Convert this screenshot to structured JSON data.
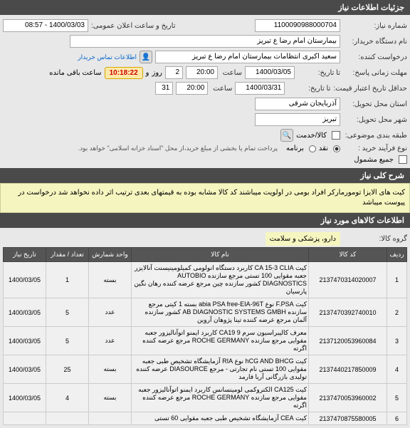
{
  "colors": {
    "header_bg": "#4a4a4a",
    "header_fg": "#ffffff",
    "content_bg": "#e8e8e8",
    "field_bg": "#ffffff",
    "field_border": "#aaaaaa",
    "banner_bg": "#f5f5c0",
    "countdown_bg": "#ffe9a8",
    "countdown_fg": "#cc0000",
    "table_th_bg": "#555555",
    "table_td_bg": "#f0f0f0"
  },
  "sections": {
    "header": "جزئیات اطلاعات نیاز",
    "general": "شرح کلی نیاز",
    "items": "اطلاعات کالاهای مورد نیاز"
  },
  "labels": {
    "need_no": "شماره نیاز:",
    "pub_date": "تاریخ و ساعت اعلان عمومی:",
    "buyer": "نام دستگاه خریدار:",
    "requester": "درخواست کننده:",
    "buyer_info": "اطلاعات تماس خریدار",
    "deadline": "مهلت زمانی پاسخ:",
    "until_date": "تا تاریخ:",
    "time": "ساعت",
    "days": "و",
    "remain": "روز",
    "time_remain": "ساعت باقی مانده",
    "credit_deadline": "حداقل تاریخ اعتبار قیمت:",
    "province": "استان محل تحویل:",
    "city": "شهر محل تحویل:",
    "category": "طبقه بندی موضوعی:",
    "process": "نوع فرآیند خرید :",
    "delivery": "کالا/خدمت",
    "cash": "نقد",
    "plan": "برنامه",
    "plan_note": "پرداخت تمام یا بخشی از مبلغ خرید،از محل \"اسناد خزانه اسلامی\" خواهد بود.",
    "overall": "جمیع مشمول",
    "group": "گروه کالا:"
  },
  "values": {
    "need_no": "1100090988000704",
    "pub_date": "1400/03/03 - 08:57",
    "buyer": "بیمارستان امام رضا  ع  تبریز",
    "requester": "سعید اکبری انتظامات بیمارستان امام رضا  ع  تبریز",
    "deadline_date": "1400/03/05",
    "deadline_time": "20:00",
    "days": "2",
    "countdown": "10:18:22",
    "credit_date": "1400/03/31",
    "credit_time": "20:00",
    "credit_day": "31",
    "province": "آذربایجان شرقی",
    "city": "تبریز",
    "general_desc": "کیت های الایزا تومورمارکر افراد بومی در اولویت میباشند کد کالا مشابه بوده به قیمتهای بعدی ترتیب اثر داده نخواهد شد درخواست در پیوست میباشد",
    "group": "دارو، پزشکی و سلامت"
  },
  "table": {
    "columns": [
      "ردیف",
      "کد کالا",
      "نام کالا",
      "واحد شمارش",
      "تعداد / مقدار",
      "تاریخ نیاز"
    ],
    "rows": [
      {
        "n": "1",
        "code": "2137470314020007",
        "name": "کیت CA 15-3 CLIA کاربرد دستگاه انولومی کمیلومینیسنت آنالایزر جعبه مقوایی 100 تستی مرجع سازنده AUTOBIO DIAGNOSTICS کشور سازنده چین مرجع عرضه کننده رهان نگین پارسیان",
        "unit": "بسته",
        "qty": "1",
        "date": "1400/03/05"
      },
      {
        "n": "2",
        "code": "2137470392740010",
        "name": "کیت F.PSA نوع abia PSA free-EIA-96T بسته 1 کیتی مرجع سازنده AB DIAGNOSTIC SYSTEMS GMBH کشور سازنده آلمان مرجع عرضه کننده تینا پژوهان آروین",
        "unit": "عدد",
        "qty": "5",
        "date": "1400/03/05"
      },
      {
        "n": "3",
        "code": "2137120053960084",
        "name": "معرف کالیبراسیون سرم CA19 9 کاربرد ایمنو اتوآنالیزور جعبه مقوایی مرجع سازنده ROCHE GERMANY مرجع عرضه کننده اگرته",
        "unit": "عدد",
        "qty": "5",
        "date": "1400/03/05"
      },
      {
        "n": "4",
        "code": "2137440217850009",
        "name": "کیت hCG AND BHCG نوع RIA آزمایشگاه تشخیص طبی جعبه مقوایی 100 تستی نام تجارتی - مرجع DIASOURCE عرضه کننده تولیدی بازرگانی آریا فارمد",
        "unit": "بسته",
        "qty": "25",
        "date": "1400/03/05"
      },
      {
        "n": "5",
        "code": "2137470053960002",
        "name": "کیت CA125 الکتروکمی لومینسانس کاربرد ایمنو اتوآنالیزور جعبه مقوایی مرجع سازنده ROCHE GERMANY مرجع عرضه کننده اگرته",
        "unit": "بسته",
        "qty": "4",
        "date": "1400/03/05"
      },
      {
        "n": "6",
        "code": "2137470875580005",
        "name": "کیت CEA آزمایشگاه تشخیص طبی جعبه مقوایی 60 تستی",
        "unit": "",
        "qty": "",
        "date": ""
      }
    ]
  }
}
